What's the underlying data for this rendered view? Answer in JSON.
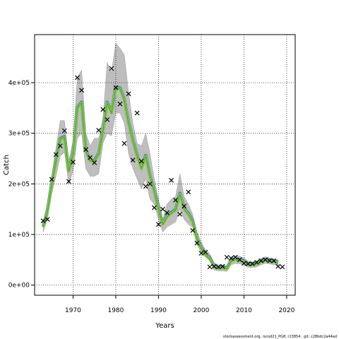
{
  "chart_data": {
    "type": "line",
    "title": "",
    "xlabel": "Years",
    "ylabel": "Catch",
    "xlim": [
      1961,
      2022
    ],
    "ylim": [
      -20000,
      495000
    ],
    "x_ticks": [
      1970,
      1980,
      1990,
      2000,
      2010,
      2020
    ],
    "x_tick_labels": [
      "1970",
      "1980",
      "1990",
      "2000",
      "2010",
      "2020"
    ],
    "y_ticks": [
      0,
      100000,
      200000,
      300000,
      400000
    ],
    "y_tick_labels": [
      "0e+00",
      "1e+05",
      "2e+05",
      "3e+05",
      "4e+05"
    ],
    "grid": true,
    "grid_style": "dotted",
    "colors": {
      "band": "#bebebe",
      "line_fill": "#88c843",
      "line_mid": "#4aa03a",
      "line_blue": "#3b6fc9",
      "points": "#000000"
    },
    "band": {
      "x": [
        1963,
        1964,
        1965,
        1966,
        1967,
        1968,
        1969,
        1970,
        1971,
        1972,
        1973,
        1974,
        1975,
        1976,
        1977,
        1978,
        1979,
        1980,
        1981,
        1982,
        1983,
        1984,
        1985,
        1986,
        1987,
        1988,
        1989,
        1990,
        1991,
        1992,
        1993,
        1994,
        1995,
        1996,
        1997,
        1998,
        1999,
        2000,
        2001,
        2002,
        2003,
        2004,
        2005,
        2006,
        2007,
        2008,
        2009,
        2010,
        2011,
        2012,
        2013,
        2014,
        2015,
        2016,
        2017,
        2018
      ],
      "lower": [
        105000,
        130000,
        180000,
        215000,
        255000,
        262000,
        200000,
        225000,
        290000,
        300000,
        230000,
        215000,
        215000,
        220000,
        280000,
        300000,
        295000,
        340000,
        340000,
        320000,
        260000,
        230000,
        210000,
        190000,
        210000,
        170000,
        160000,
        130000,
        105000,
        115000,
        120000,
        125000,
        150000,
        130000,
        120000,
        115000,
        80000,
        65000,
        55000,
        48000,
        30000,
        28000,
        28000,
        27000,
        40000,
        43000,
        42000,
        40000,
        35000,
        35000,
        36000,
        40000,
        43000,
        42000,
        40000,
        39000
      ],
      "upper": [
        125000,
        160000,
        215000,
        270000,
        325000,
        325000,
        245000,
        285000,
        410000,
        425000,
        300000,
        275000,
        290000,
        290000,
        330000,
        440000,
        420000,
        478000,
        468000,
        455000,
        380000,
        320000,
        280000,
        275000,
        300000,
        260000,
        210000,
        170000,
        130000,
        160000,
        170000,
        175000,
        220000,
        175000,
        160000,
        140000,
        105000,
        85000,
        70000,
        62000,
        44000,
        40000,
        40000,
        38000,
        56000,
        58000,
        57000,
        54000,
        47000,
        46000,
        48000,
        53000,
        56000,
        54000,
        52000,
        50000
      ]
    },
    "series": [
      {
        "x": [
          1963,
          1964,
          1965,
          1966,
          1967,
          1968,
          1969,
          1970,
          1971,
          1972,
          1973,
          1974,
          1975,
          1976,
          1977,
          1978,
          1979,
          1980,
          1981,
          1982,
          1983,
          1984,
          1985,
          1986,
          1987,
          1988,
          1989,
          1990,
          1991,
          1992,
          1993,
          1994,
          1995,
          1996,
          1997,
          1998,
          1999,
          2000,
          2001,
          2002,
          2003,
          2004,
          2005,
          2006,
          2007,
          2008,
          2009,
          2010,
          2011,
          2012,
          2013,
          2014,
          2015,
          2016,
          2017,
          2018
        ],
        "values": [
          115000,
          145000,
          200000,
          245000,
          288000,
          292000,
          225000,
          258000,
          350000,
          360000,
          265000,
          245000,
          245000,
          258000,
          305000,
          360000,
          340000,
          390000,
          388000,
          365000,
          320000,
          285000,
          255000,
          230000,
          255000,
          215000,
          185000,
          150000,
          120000,
          135000,
          142000,
          148000,
          180000,
          150000,
          140000,
          125000,
          90000,
          72000,
          60000,
          52000,
          36000,
          33000,
          34000,
          32000,
          48000,
          50000,
          49000,
          46000,
          40000,
          40000,
          42000,
          46000,
          49000,
          48000,
          46000,
          44000
        ]
      }
    ],
    "points": {
      "x": [
        1963,
        1964,
        1965,
        1966,
        1967,
        1968,
        1969,
        1970,
        1971,
        1972,
        1973,
        1974,
        1975,
        1976,
        1977,
        1978,
        1979,
        1980,
        1981,
        1982,
        1983,
        1984,
        1985,
        1986,
        1987,
        1988,
        1989,
        1990,
        1991,
        1992,
        1993,
        1994,
        1995,
        1996,
        1997,
        1998,
        1999,
        2000,
        2001,
        2002,
        2003,
        2004,
        2005,
        2006,
        2007,
        2008,
        2009,
        2010,
        2011,
        2012,
        2013,
        2014,
        2015,
        2016,
        2017,
        2018,
        2019
      ],
      "y": [
        127000,
        130000,
        209000,
        258000,
        275000,
        305000,
        205000,
        243000,
        410000,
        385000,
        268000,
        252000,
        242000,
        306000,
        347000,
        327000,
        428000,
        390000,
        358000,
        280000,
        378000,
        247000,
        340000,
        245000,
        195000,
        200000,
        153000,
        120000,
        150000,
        143000,
        207000,
        168000,
        140000,
        156000,
        184000,
        108000,
        83000,
        63000,
        65000,
        36000,
        37000,
        36000,
        37000,
        55000,
        53000,
        55000,
        50000,
        43000,
        42000,
        42000,
        45000,
        48000,
        50000,
        48000,
        48000,
        37000,
        36000
      ]
    }
  },
  "footer_text": "stockassessment.org, rscod21_PG8, r13854 , git: c28bdc2a44ad"
}
